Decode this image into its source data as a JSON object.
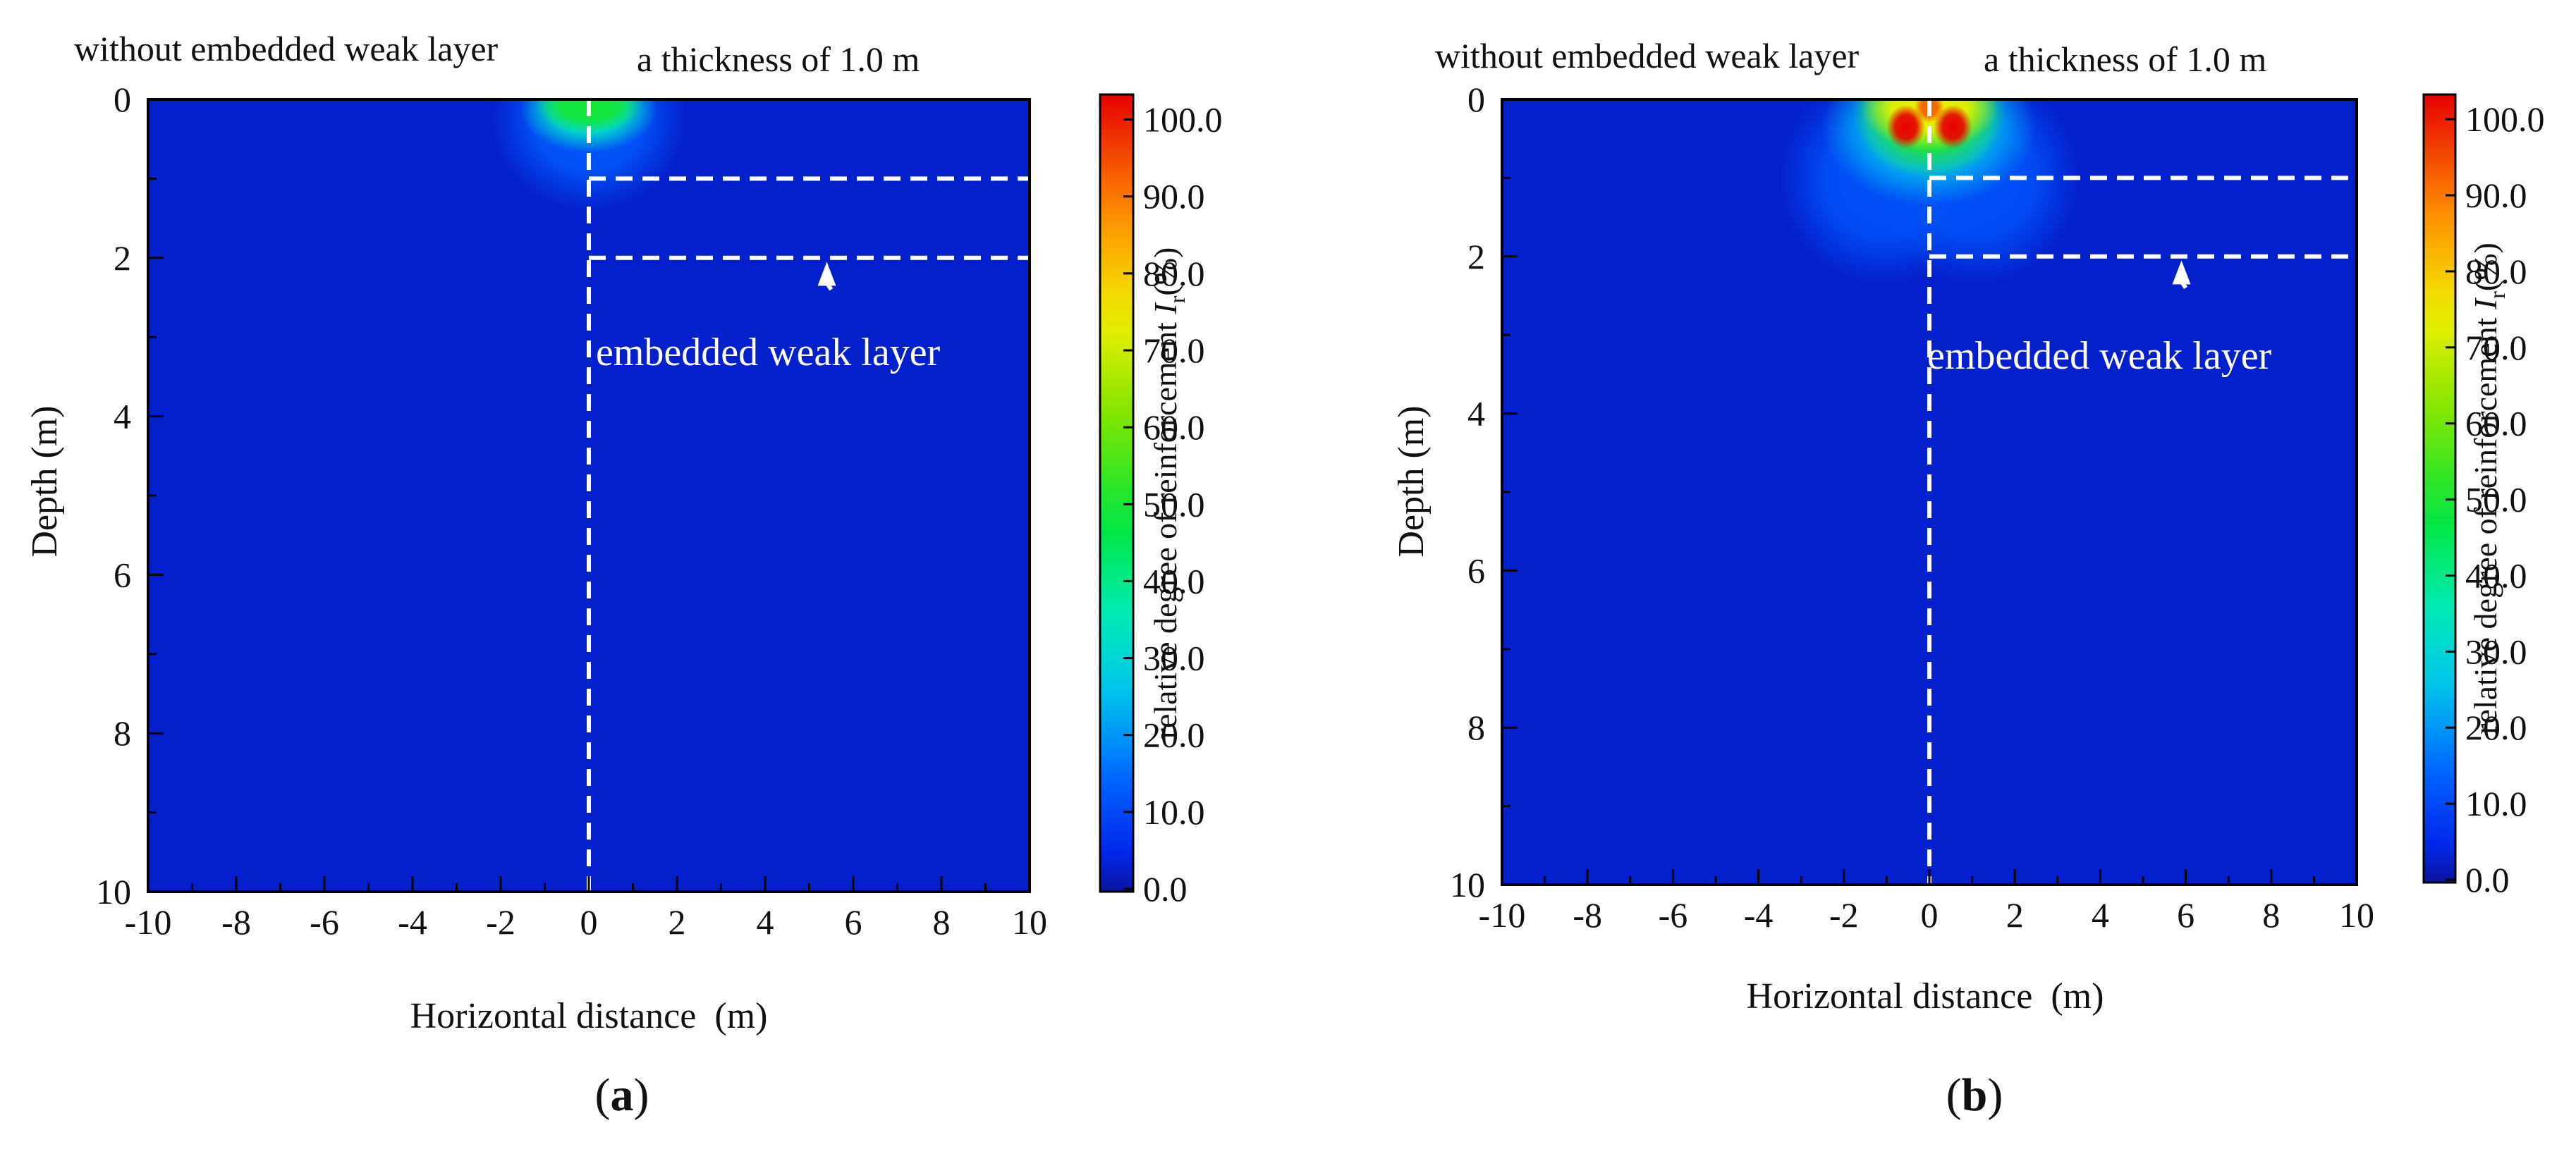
{
  "chart_data": [
    {
      "type": "heatmap",
      "panel_label": "(a)",
      "annotations": {
        "left": "without embedded weak layer",
        "right": "a thickness of 1.0 m",
        "weak_layer": "embedded weak layer"
      },
      "xlabel": "Horizontal distance  (m)",
      "ylabel": "Depth (m)",
      "xlim": [
        -10,
        10
      ],
      "ylim": [
        0,
        10
      ],
      "y_inverted": true,
      "x_ticks": [
        -10,
        -8,
        -6,
        -4,
        -2,
        0,
        2,
        4,
        6,
        8,
        10
      ],
      "y_ticks": [
        0,
        2,
        4,
        6,
        8,
        10
      ],
      "colorbar": {
        "label": "relative degree of reinforcement ",
        "symbol": "I",
        "subscript": "r",
        "unit": "(%)",
        "ticks": [
          "0.0",
          "10.0",
          "20.0",
          "30.0",
          "40.0",
          "50.0",
          "60.0",
          "70.0",
          "80.0",
          "90.0",
          "100.0"
        ],
        "range": [
          0,
          100
        ],
        "tick_values": [
          0,
          10,
          20,
          30,
          40,
          50,
          60,
          70,
          80,
          90,
          100
        ]
      },
      "weak_layer_depths": [
        1.0,
        2.0
      ],
      "divider_x": 0,
      "arrow": {
        "from": [
          5.5,
          2.4
        ],
        "to": [
          5.4,
          2.05
        ]
      },
      "background_value": 3,
      "zones": [
        {
          "center": [
            0,
            0.25
          ],
          "radius": [
            2.2,
            1.15
          ],
          "value": 12
        },
        {
          "center": [
            0,
            0.12
          ],
          "radius": [
            1.55,
            0.55
          ],
          "value": 32
        },
        {
          "center": [
            0,
            0.05
          ],
          "radius": [
            1.2,
            0.38
          ],
          "value": 48
        }
      ]
    },
    {
      "type": "heatmap",
      "panel_label": "(b)",
      "annotations": {
        "left": "without embedded weak layer",
        "right": "a thickness of 1.0 m",
        "weak_layer": "embedded weak layer"
      },
      "xlabel": "Horizontal distance  (m)",
      "ylabel": "Depth (m)",
      "xlim": [
        -10,
        10
      ],
      "ylim": [
        0,
        10
      ],
      "y_inverted": true,
      "x_ticks": [
        -10,
        -8,
        -6,
        -4,
        -2,
        0,
        2,
        4,
        6,
        8,
        10
      ],
      "y_ticks": [
        0,
        2,
        4,
        6,
        8,
        10
      ],
      "colorbar": {
        "label": "relative degree of reinforcement ",
        "symbol": "I",
        "subscript": "r",
        "unit": "(%)",
        "ticks": [
          "0.0",
          "10.0",
          "20.0",
          "30.0",
          "40.0",
          "50.0",
          "60.0",
          "70.0",
          "80.0",
          "90.0",
          "100.0"
        ],
        "range": [
          0,
          100
        ],
        "tick_values": [
          0,
          10,
          20,
          30,
          40,
          50,
          60,
          70,
          80,
          90,
          100
        ]
      },
      "weak_layer_depths": [
        1.0,
        2.0
      ],
      "divider_x": 0,
      "arrow": {
        "from": [
          6.0,
          2.4
        ],
        "to": [
          5.9,
          2.05
        ]
      },
      "background_value": 3,
      "zones": [
        {
          "center": [
            -1.1,
            1.0
          ],
          "radius": [
            2.4,
            1.35
          ],
          "value": 11
        },
        {
          "center": [
            1.1,
            1.0
          ],
          "radius": [
            2.4,
            1.35
          ],
          "value": 11
        },
        {
          "center": [
            0,
            0.35
          ],
          "radius": [
            2.5,
            1.0
          ],
          "value": 24
        },
        {
          "center": [
            0,
            0.15
          ],
          "radius": [
            1.8,
            0.85
          ],
          "value": 50
        },
        {
          "center": [
            0,
            0.1
          ],
          "radius": [
            1.6,
            0.55
          ],
          "value": 72
        },
        {
          "center": [
            -0.55,
            0.35
          ],
          "radius": [
            0.45,
            0.28
          ],
          "value": 100
        },
        {
          "center": [
            0.55,
            0.35
          ],
          "radius": [
            0.45,
            0.28
          ],
          "value": 100
        },
        {
          "center": [
            0,
            0.1
          ],
          "radius": [
            0.35,
            0.2
          ],
          "value": 90
        }
      ]
    }
  ]
}
